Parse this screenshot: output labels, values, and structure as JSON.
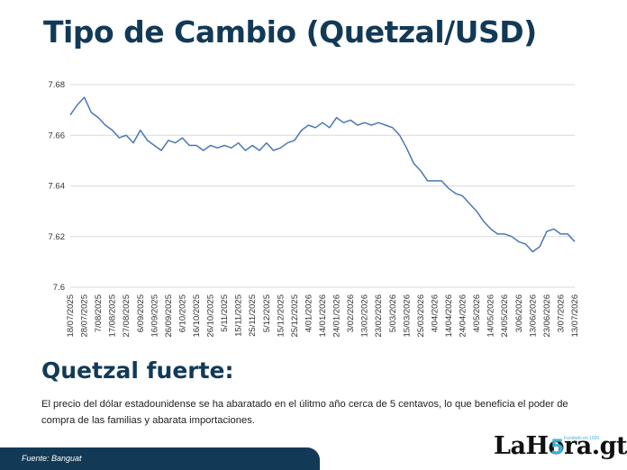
{
  "page": {
    "title": "Tipo de Cambio (Quetzal/USD)",
    "subtitle": "Quetzal fuerte:",
    "description": "El precio del dólar estadounidense se ha abaratado en el úlitmo año cerca de 5 centavos, lo que beneficia el poder de compra de las familias y abarata importaciones.",
    "source": "Fuente: Banguat",
    "logo": {
      "text": "LaHora.gt",
      "accent": "5",
      "tagline": "Fundado en 1920"
    }
  },
  "colors": {
    "title": "#123a57",
    "line": "#4a77b4",
    "grid": "#d9d9d9",
    "footer": "#123a57",
    "accent": "#3fb0d9"
  },
  "chart_data": {
    "type": "line",
    "title": "",
    "xlabel": "",
    "ylabel": "",
    "ylim": [
      7.6,
      7.68
    ],
    "grid": true,
    "yticks": [
      "7.6",
      "7.62",
      "7.64",
      "7.66",
      "7.68"
    ],
    "x_tick_labels": [
      "18/07/2025",
      "28/07/2025",
      "7/08/2025",
      "17/08/2025",
      "27/08/2025",
      "6/09/2025",
      "16/09/2025",
      "26/09/2025",
      "6/10/2025",
      "16/10/2025",
      "26/10/2025",
      "5/11/2025",
      "15/11/2025",
      "25/11/2025",
      "5/12/2025",
      "15/12/2025",
      "25/12/2025",
      "4/01/2026",
      "14/01/2026",
      "24/01/2026",
      "3/02/2026",
      "13/02/2026",
      "23/02/2026",
      "5/03/2026",
      "15/03/2026",
      "25/03/2026",
      "4/04/2026",
      "14/04/2026",
      "24/04/2026",
      "4/05/2026",
      "14/05/2026",
      "24/05/2026",
      "3/06/2026",
      "13/06/2026",
      "23/06/2026",
      "3/07/2026",
      "13/07/2026"
    ],
    "series": [
      {
        "x": [
          "18/07/2025",
          "23/07/2025",
          "28/07/2025",
          "2/08/2025",
          "7/08/2025",
          "12/08/2025",
          "17/08/2025",
          "22/08/2025",
          "27/08/2025",
          "1/09/2025",
          "6/09/2025",
          "11/09/2025",
          "16/09/2025",
          "21/09/2025",
          "26/09/2025",
          "1/10/2025",
          "6/10/2025",
          "11/10/2025",
          "16/10/2025",
          "21/10/2025",
          "26/10/2025",
          "31/10/2025",
          "5/11/2025",
          "10/11/2025",
          "15/11/2025",
          "20/11/2025",
          "25/11/2025",
          "30/11/2025",
          "5/12/2025",
          "10/12/2025",
          "15/12/2025",
          "20/12/2025",
          "25/12/2025",
          "30/12/2025",
          "4/01/2026",
          "9/01/2026",
          "14/01/2026",
          "19/01/2026",
          "24/01/2026",
          "29/01/2026",
          "3/02/2026",
          "8/02/2026",
          "13/02/2026",
          "18/02/2026",
          "23/02/2026",
          "28/02/2026",
          "5/03/2026",
          "10/03/2026",
          "15/03/2026",
          "20/03/2026",
          "25/03/2026",
          "30/03/2026",
          "4/04/2026",
          "9/04/2026",
          "14/04/2026",
          "19/04/2026",
          "24/04/2026",
          "29/04/2026",
          "4/05/2026",
          "9/05/2026",
          "14/05/2026",
          "19/05/2026",
          "24/05/2026",
          "29/05/2026",
          "3/06/2026",
          "8/06/2026",
          "13/06/2026",
          "18/06/2026",
          "23/06/2026",
          "28/06/2026",
          "3/07/2026",
          "8/07/2026",
          "13/07/2026"
        ],
        "values": [
          7.668,
          7.672,
          7.675,
          7.669,
          7.667,
          7.664,
          7.662,
          7.659,
          7.66,
          7.657,
          7.662,
          7.658,
          7.656,
          7.654,
          7.658,
          7.657,
          7.659,
          7.656,
          7.656,
          7.654,
          7.656,
          7.655,
          7.656,
          7.655,
          7.657,
          7.654,
          7.656,
          7.654,
          7.657,
          7.654,
          7.655,
          7.657,
          7.658,
          7.662,
          7.664,
          7.663,
          7.665,
          7.663,
          7.667,
          7.665,
          7.666,
          7.664,
          7.665,
          7.664,
          7.665,
          7.664,
          7.663,
          7.66,
          7.655,
          7.649,
          7.646,
          7.642,
          7.642,
          7.642,
          7.639,
          7.637,
          7.636,
          7.633,
          7.63,
          7.626,
          7.623,
          7.621,
          7.621,
          7.62,
          7.618,
          7.617,
          7.614,
          7.616,
          7.622,
          7.623,
          7.621,
          7.621,
          7.618
        ]
      }
    ]
  }
}
